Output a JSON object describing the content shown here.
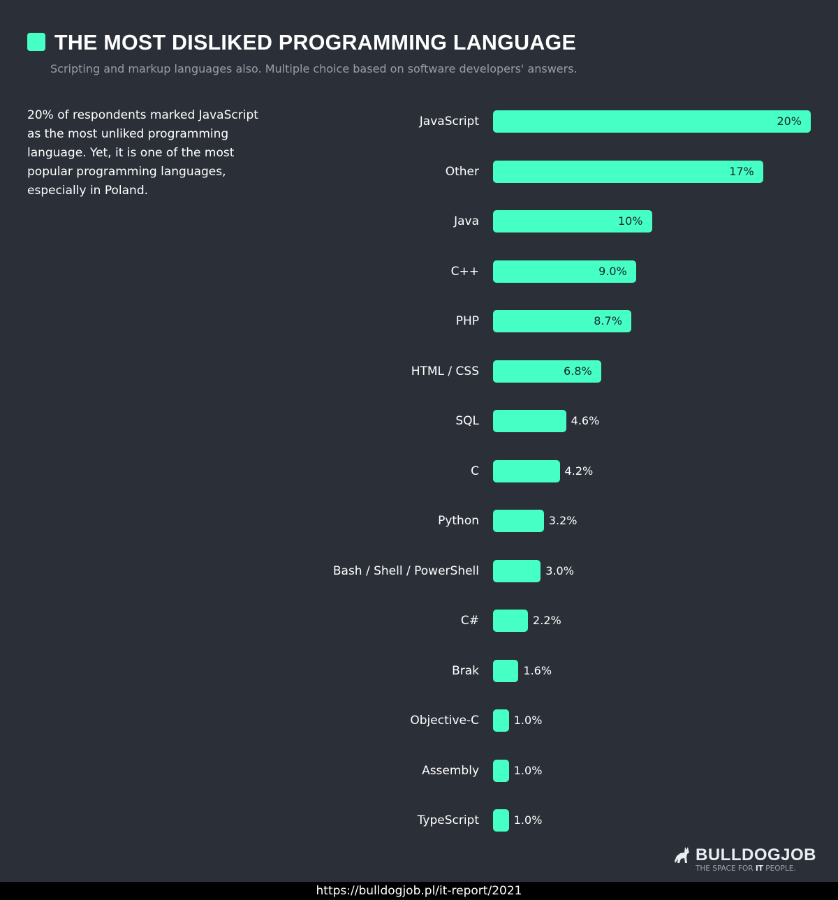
{
  "header": {
    "title": "THE MOST DISLIKED PROGRAMMING LANGUAGE",
    "subtitle": "Scripting and markup languages also. Multiple choice based on software developers' answers."
  },
  "note": "20% of respondents marked JavaScript as the most unliked programming language. Yet, it is one of the most popular programming languages, especially in Poland.",
  "colors": {
    "background": "#2b2f38",
    "bar": "#45ffc4",
    "accent": "#45ffc4"
  },
  "chart_data": {
    "type": "bar",
    "orientation": "horizontal",
    "title": "THE MOST DISLIKED PROGRAMMING LANGUAGE",
    "categories": [
      "JavaScript",
      "Other",
      "Java",
      "C++",
      "PHP",
      "HTML / CSS",
      "SQL",
      "C",
      "Python",
      "Bash / Shell / PowerShell",
      "C#",
      "Brak",
      "Objective-C",
      "Assembly",
      "TypeScript"
    ],
    "values": [
      20,
      17,
      10,
      9.0,
      8.7,
      6.8,
      4.6,
      4.2,
      3.2,
      3.0,
      2.2,
      1.6,
      1.0,
      1.0,
      1.0
    ],
    "labels": [
      "20%",
      "17%",
      "10%",
      "9.0%",
      "8.7%",
      "6.8%",
      "4.6%",
      "4.2%",
      "3.2%",
      "3.0%",
      "2.2%",
      "1.6%",
      "1.0%",
      "1.0%",
      "1.0%"
    ],
    "unit": "%",
    "grid": false
  },
  "logo": {
    "name": "BULLDOGJOB",
    "tagline_pre": "THE SPACE FOR ",
    "tagline_bold": "IT",
    "tagline_post": " PEOPLE.",
    "icon": "bulldog-icon"
  },
  "footer": {
    "url": "https://bulldogjob.pl/it-report/2021"
  }
}
